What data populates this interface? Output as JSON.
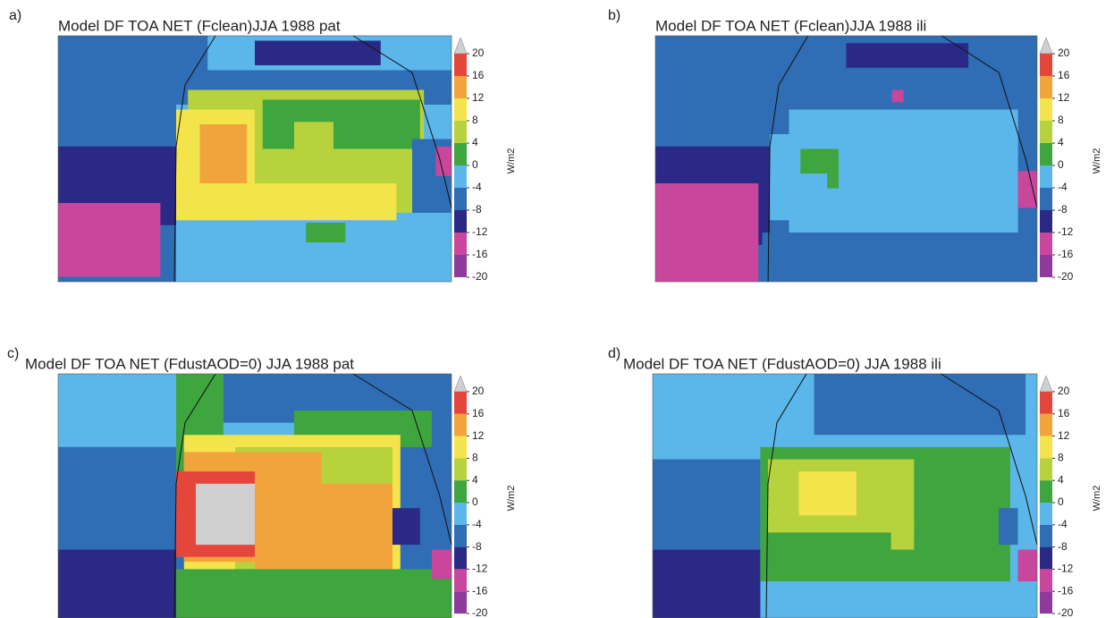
{
  "panels": [
    {
      "letter": "a)",
      "title": "Model DF TOA NET (Fclean)JJA 1988 pat"
    },
    {
      "letter": "b)",
      "title": "Model DF TOA NET (Fclean)JJA 1988 ili"
    },
    {
      "letter": "c)",
      "title": "Model DF TOA NET (FdustAOD=0) JJA 1988 pat"
    },
    {
      "letter": "d)",
      "title": "Model DF TOA NET (FdustAOD=0) JJA 1988 ili"
    }
  ],
  "colorbar": {
    "ticks": [
      20,
      16,
      12,
      8,
      4,
      0,
      -4,
      -8,
      -12,
      -16,
      -20
    ],
    "colors": [
      "#e5463c",
      "#f2a43c",
      "#f4e44c",
      "#b7d23c",
      "#3fa53e",
      "#5bb6ea",
      "#2f6db4",
      "#2a2a86",
      "#c8469c",
      "#8d3a9c"
    ],
    "over_color": "#cfcfcf",
    "unit": "W/m2"
  }
}
